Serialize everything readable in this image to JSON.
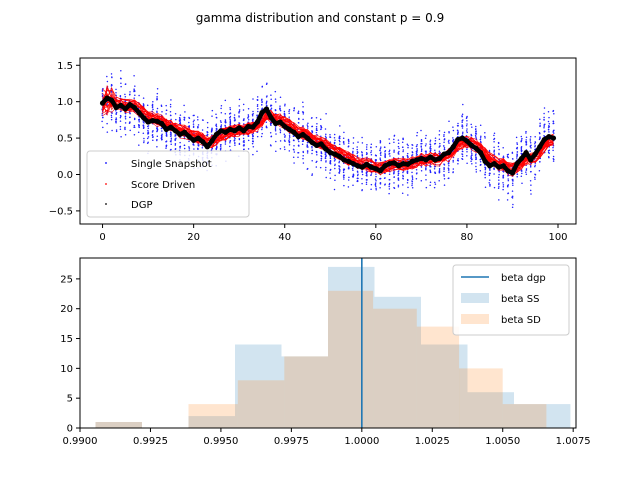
{
  "suptitle": "gamma distribution and constant p = 0.9",
  "chart_data": [
    {
      "type": "scatter",
      "xlim": [
        -4.95,
        103.95
      ],
      "ylim": [
        -0.68,
        1.6
      ],
      "xticks": [
        0,
        20,
        40,
        60,
        80,
        100
      ],
      "yticks": [
        -0.5,
        0.0,
        0.5,
        1.0,
        1.5
      ],
      "xtick_labels": [
        "0",
        "20",
        "40",
        "60",
        "80",
        "100"
      ],
      "ytick_labels": [
        "−0.5",
        "0.0",
        "0.5",
        "1.0",
        "1.5"
      ],
      "legend_position": "lower-left",
      "colors": {
        "Single Snapshot": "#0000ff",
        "Score Driven": "#ff0000",
        "DGP": "#000000"
      },
      "series": [
        {
          "name": "Single Snapshot",
          "style": "small dots, many replications"
        },
        {
          "name": "Score Driven",
          "style": "thin lines, many replications"
        },
        {
          "name": "DGP",
          "style": "thick line with markers"
        }
      ],
      "dgp_x": [
        0,
        1,
        2,
        3,
        4,
        5,
        6,
        7,
        8,
        9,
        10,
        11,
        12,
        13,
        14,
        15,
        16,
        17,
        18,
        19,
        20,
        21,
        22,
        23,
        24,
        25,
        26,
        27,
        28,
        29,
        30,
        31,
        32,
        33,
        34,
        35,
        36,
        37,
        38,
        39,
        40,
        41,
        42,
        43,
        44,
        45,
        46,
        47,
        48,
        49,
        50,
        51,
        52,
        53,
        54,
        55,
        56,
        57,
        58,
        59,
        60,
        61,
        62,
        63,
        64,
        65,
        66,
        67,
        68,
        69,
        70,
        71,
        72,
        73,
        74,
        75,
        76,
        77,
        78,
        79,
        80,
        81,
        82,
        83,
        84,
        85,
        86,
        87,
        88,
        89,
        90,
        91,
        92,
        93,
        94,
        95,
        96,
        97,
        98,
        99
      ],
      "dgp_y": [
        0.98,
        1.05,
        1.02,
        0.92,
        0.95,
        0.9,
        0.96,
        0.92,
        0.85,
        0.78,
        0.72,
        0.74,
        0.73,
        0.7,
        0.62,
        0.65,
        0.6,
        0.55,
        0.58,
        0.52,
        0.47,
        0.5,
        0.45,
        0.38,
        0.46,
        0.55,
        0.6,
        0.58,
        0.62,
        0.6,
        0.64,
        0.6,
        0.66,
        0.65,
        0.72,
        0.85,
        0.9,
        0.78,
        0.7,
        0.72,
        0.66,
        0.62,
        0.58,
        0.52,
        0.55,
        0.5,
        0.44,
        0.4,
        0.42,
        0.35,
        0.3,
        0.28,
        0.25,
        0.2,
        0.18,
        0.15,
        0.12,
        0.1,
        0.14,
        0.1,
        0.08,
        0.05,
        0.12,
        0.15,
        0.16,
        0.12,
        0.15,
        0.14,
        0.18,
        0.2,
        0.22,
        0.2,
        0.24,
        0.2,
        0.22,
        0.28,
        0.3,
        0.38,
        0.48,
        0.5,
        0.46,
        0.4,
        0.36,
        0.3,
        0.18,
        0.12,
        0.15,
        0.1,
        0.12,
        0.05,
        0.02,
        0.15,
        0.22,
        0.3,
        0.2,
        0.28,
        0.38,
        0.48,
        0.52,
        0.5
      ]
    },
    {
      "type": "histogram",
      "xlim": [
        0.99,
        1.0076
      ],
      "ylim": [
        0,
        28.5
      ],
      "xticks": [
        0.99,
        0.9925,
        0.995,
        0.9975,
        1.0,
        1.0025,
        1.005,
        1.0075
      ],
      "xtick_labels": [
        "0.9900",
        "0.9925",
        "0.9950",
        "0.9975",
        "1.0000",
        "1.0025",
        "1.0050",
        "1.0075"
      ],
      "yticks": [
        0,
        5,
        10,
        15,
        20,
        25
      ],
      "ytick_labels": [
        "0",
        "5",
        "10",
        "15",
        "20",
        "25"
      ],
      "legend_position": "top-right",
      "vline": {
        "name": "beta dgp",
        "x": 1.0,
        "color": "#1f77b4"
      },
      "series": [
        {
          "name": "beta SS",
          "color": "#1f77b4",
          "alpha": 0.2,
          "bins": [
            [
              0.99055,
              0.9922,
              1
            ],
            [
              0.9922,
              0.99385,
              0
            ],
            [
              0.99385,
              0.9955,
              2
            ],
            [
              0.9955,
              0.99715,
              14
            ],
            [
              0.99715,
              0.9988,
              12
            ],
            [
              0.9988,
              1.00045,
              27
            ],
            [
              1.00045,
              1.0021,
              22
            ],
            [
              1.0021,
              1.00375,
              14
            ],
            [
              1.00375,
              1.0054,
              6
            ],
            [
              1.0054,
              1.00705,
              4
            ],
            [
              1.00705,
              1.0074,
              4
            ]
          ]
        },
        {
          "name": "beta SD",
          "color": "#ff7f0e",
          "alpha": 0.2,
          "bins": [
            [
              0.99055,
              0.9922,
              1
            ],
            [
              0.9922,
              0.99385,
              0
            ],
            [
              0.99385,
              0.9956,
              4
            ],
            [
              0.9956,
              0.99725,
              8
            ],
            [
              0.99725,
              0.9988,
              12
            ],
            [
              0.9988,
              1.0004,
              23
            ],
            [
              1.0004,
              1.00195,
              20
            ],
            [
              1.00195,
              1.00345,
              17
            ],
            [
              1.00345,
              1.005,
              10
            ],
            [
              1.005,
              1.00655,
              4
            ]
          ]
        }
      ]
    }
  ]
}
